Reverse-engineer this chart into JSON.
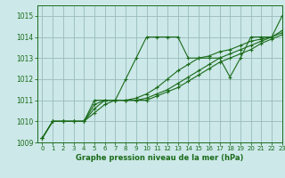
{
  "bg_color": "#cce8e8",
  "grid_color": "#99bbbb",
  "line_color": "#1a6b1a",
  "title": "Graphe pression niveau de la mer (hPa)",
  "xlim": [
    -0.5,
    23
  ],
  "ylim": [
    1009,
    1015.5
  ],
  "yticks": [
    1009,
    1010,
    1011,
    1012,
    1013,
    1014,
    1015
  ],
  "xticks": [
    0,
    1,
    2,
    3,
    4,
    5,
    6,
    7,
    8,
    9,
    10,
    11,
    12,
    13,
    14,
    15,
    16,
    17,
    18,
    19,
    20,
    21,
    22,
    23
  ],
  "series": [
    [
      1009.2,
      1010.0,
      1010.0,
      1010.0,
      1010.0,
      1011.0,
      1011.0,
      1011.0,
      1012.0,
      1013.0,
      1014.0,
      1014.0,
      1014.0,
      1014.0,
      1013.0,
      1013.0,
      1013.0,
      1013.0,
      1012.1,
      1013.0,
      1014.0,
      1014.0,
      1014.0,
      1015.0
    ],
    [
      1009.2,
      1010.0,
      1010.0,
      1010.0,
      1010.0,
      1010.8,
      1011.0,
      1011.0,
      1011.0,
      1011.1,
      1011.3,
      1011.6,
      1012.0,
      1012.4,
      1012.7,
      1013.0,
      1013.1,
      1013.3,
      1013.4,
      1013.6,
      1013.8,
      1013.9,
      1014.0,
      1014.3
    ],
    [
      1009.2,
      1010.0,
      1010.0,
      1010.0,
      1010.0,
      1010.6,
      1011.0,
      1011.0,
      1011.0,
      1011.0,
      1011.1,
      1011.3,
      1011.5,
      1011.8,
      1012.1,
      1012.4,
      1012.7,
      1013.0,
      1013.2,
      1013.4,
      1013.6,
      1013.8,
      1014.0,
      1014.2
    ],
    [
      1009.2,
      1010.0,
      1010.0,
      1010.0,
      1010.0,
      1010.4,
      1010.8,
      1011.0,
      1011.0,
      1011.0,
      1011.0,
      1011.2,
      1011.4,
      1011.6,
      1011.9,
      1012.2,
      1012.5,
      1012.8,
      1013.0,
      1013.2,
      1013.4,
      1013.7,
      1013.9,
      1014.1
    ]
  ]
}
